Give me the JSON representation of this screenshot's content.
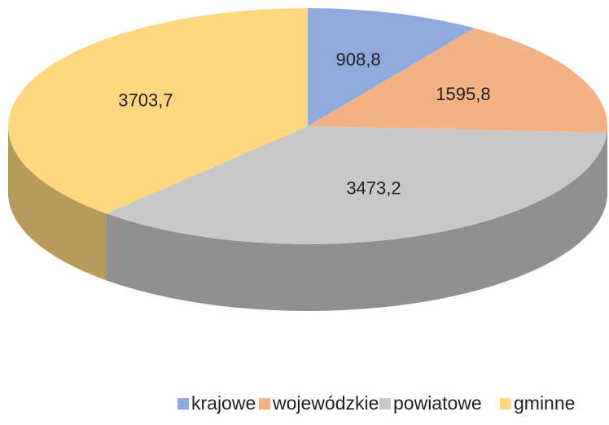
{
  "chart_data": {
    "type": "pie",
    "categories": [
      "krajowe",
      "wojewódzkie",
      "powiatowe",
      "gminne"
    ],
    "values": [
      908.8,
      1595.8,
      3473.2,
      3703.7
    ],
    "value_labels": [
      "908,8",
      "1595,8",
      "3473,2",
      "3703,7"
    ],
    "colors": [
      "#8faadc",
      "#f4b183",
      "#c8c8c8",
      "#ffd780"
    ],
    "legend": "bottom"
  }
}
